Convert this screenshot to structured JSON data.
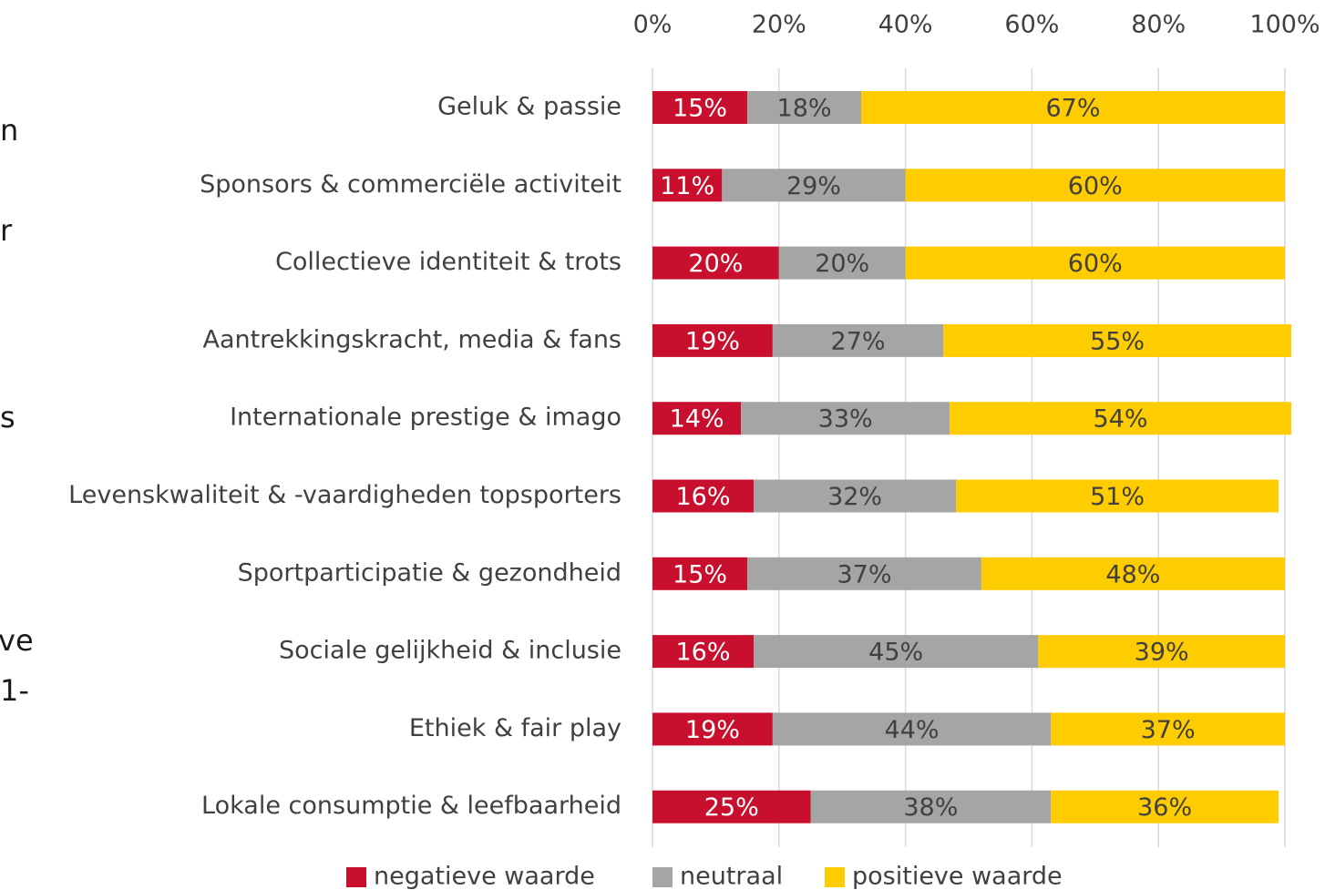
{
  "chart_data": {
    "type": "stacked_barh",
    "categories": [
      "Geluk & passie",
      "Sponsors & commerciële activiteit",
      "Collectieve identiteit & trots",
      "Aantrekkingskracht, media & fans",
      "Internationale prestige & imago",
      "Levenskwaliteit & -vaardigheden topsporters",
      "Sportparticipatie & gezondheid",
      "Sociale gelijkheid & inclusie",
      "Ethiek & fair play",
      "Lokale consumptie & leefbaarheid"
    ],
    "series": [
      {
        "name": "negatieve waarde",
        "color": "#c8102e",
        "values": [
          15,
          11,
          20,
          19,
          14,
          16,
          15,
          16,
          19,
          25
        ],
        "value_labels": [
          "15%",
          "11%",
          "20%",
          "19%",
          "14%",
          "16%",
          "15%",
          "16%",
          "19%",
          "25%"
        ]
      },
      {
        "name": "neutraal",
        "color": "#a5a5a5",
        "values": [
          18,
          29,
          20,
          27,
          33,
          32,
          37,
          45,
          44,
          38
        ],
        "value_labels": [
          "18%",
          "29%",
          "20%",
          "27%",
          "33%",
          "32%",
          "37%",
          "45%",
          "44%",
          "38%"
        ]
      },
      {
        "name": "positieve waarde",
        "color": "#ffcc00",
        "values": [
          67,
          60,
          60,
          55,
          54,
          51,
          48,
          39,
          37,
          36
        ],
        "value_labels": [
          "67%",
          "60%",
          "60%",
          "55%",
          "54%",
          "51%",
          "48%",
          "39%",
          "37%",
          "36%"
        ]
      }
    ],
    "xlim": [
      0,
      100
    ],
    "xticks": [
      {
        "value": 0,
        "label": "0%"
      },
      {
        "value": 20,
        "label": "20%"
      },
      {
        "value": 40,
        "label": "40%"
      },
      {
        "value": 60,
        "label": "60%"
      },
      {
        "value": 80,
        "label": "80%"
      },
      {
        "value": 100,
        "label": "100%"
      }
    ],
    "grid": true,
    "legend": "bottom",
    "annotations": [
      "n",
      "r",
      "s",
      "ve",
      "1-"
    ]
  }
}
